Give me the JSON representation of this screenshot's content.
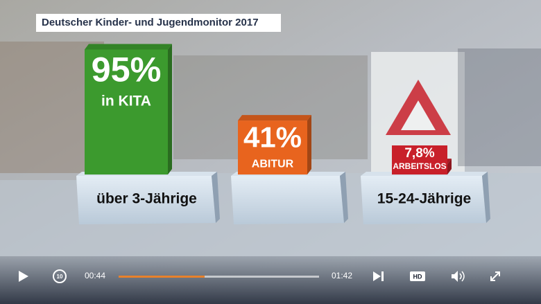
{
  "chart_data": {
    "type": "bar",
    "title": "Deutscher Kinder- und Jugendmonitor 2017",
    "categories": [
      "über 3-Jährige",
      null,
      "15-24-Jährige"
    ],
    "values": [
      95,
      41,
      7.8
    ],
    "value_labels": [
      "95%",
      "41%",
      "7,8%"
    ],
    "bar_labels": [
      "in KITA",
      "ABITUR",
      "ARBEITSLOS"
    ],
    "colors": [
      "#3c9a2e",
      "#e8641e",
      "#c8202a"
    ]
  },
  "player": {
    "current_time": "00:44",
    "duration": "01:42",
    "quality": "HD",
    "rewind": "10"
  }
}
